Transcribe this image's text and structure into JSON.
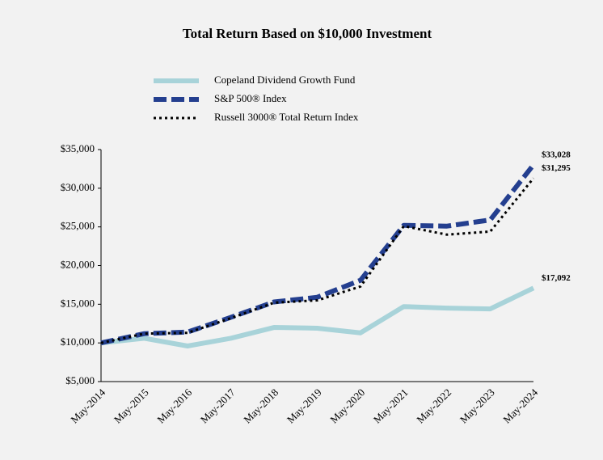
{
  "chart_data": {
    "type": "line",
    "title": "Total Return Based on $10,000 Investment",
    "categories": [
      "May-2014",
      "May-2015",
      "May-2016",
      "May-2017",
      "May-2018",
      "May-2019",
      "May-2020",
      "May-2021",
      "May-2022",
      "May-2023",
      "May-2024"
    ],
    "series": [
      {
        "name": "Copeland Dividend Growth Fund",
        "color": "#a8d3d9",
        "style": "solid",
        "values": [
          10000,
          10600,
          9600,
          10600,
          12000,
          11900,
          11300,
          14700,
          14500,
          14400,
          17092
        ],
        "value_labels": [
          null,
          null,
          null,
          null,
          null,
          null,
          null,
          null,
          null,
          null,
          "$17,092"
        ]
      },
      {
        "name": "S&P 500® Index",
        "color": "#243f8f",
        "style": "dashed",
        "values": [
          10000,
          11200,
          11400,
          13300,
          15300,
          15900,
          18100,
          25200,
          25100,
          25900,
          33028
        ],
        "value_labels": [
          null,
          null,
          null,
          null,
          null,
          null,
          null,
          null,
          null,
          null,
          "$33,028"
        ]
      },
      {
        "name": "Russell 3000® Total Return Index",
        "color": "#000000",
        "style": "dotted",
        "values": [
          10000,
          11200,
          11300,
          13200,
          15200,
          15500,
          17300,
          25100,
          24000,
          24400,
          31295
        ],
        "value_labels": [
          null,
          null,
          null,
          null,
          null,
          null,
          null,
          null,
          null,
          null,
          "$31,295"
        ]
      }
    ],
    "ylim": [
      5000,
      35000
    ],
    "yticks": [
      {
        "value": 5000,
        "label": "$5,000"
      },
      {
        "value": 10000,
        "label": "$10,000"
      },
      {
        "value": 15000,
        "label": "$15,000"
      },
      {
        "value": 20000,
        "label": "$20,000"
      },
      {
        "value": 25000,
        "label": "$25,000"
      },
      {
        "value": 30000,
        "label": "$30,000"
      },
      {
        "value": 35000,
        "label": "$35,000"
      }
    ],
    "grid": false
  }
}
